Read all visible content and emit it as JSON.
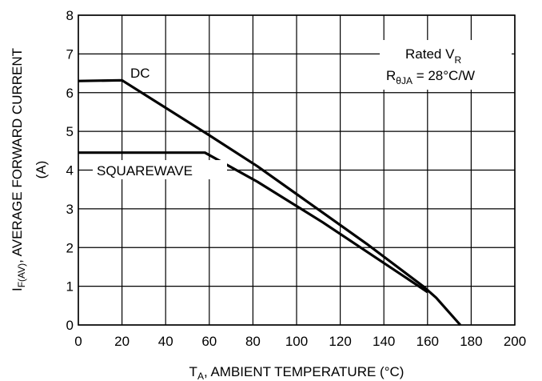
{
  "chart_data": {
    "type": "line",
    "xlabel": {
      "main": "T",
      "sub": "A",
      "rest": ", AMBIENT TEMPERATURE (°C)"
    },
    "ylabel": {
      "main": "I",
      "sub": "F(AV)",
      "rest": ", AVERAGE FORWARD CURRENT",
      "line2": "(A)"
    },
    "xlim": [
      0,
      200
    ],
    "ylim": [
      0,
      8
    ],
    "xticks": [
      "0",
      "20",
      "40",
      "60",
      "80",
      "100",
      "120",
      "140",
      "160",
      "180",
      "200"
    ],
    "yticks": [
      "0",
      "1",
      "2",
      "3",
      "4",
      "5",
      "6",
      "7",
      "8"
    ],
    "grid": true,
    "series": [
      {
        "name": "DC",
        "x": [
          0,
          20,
          60,
          82,
          112,
          132,
          158,
          164,
          175
        ],
        "y": [
          6.3,
          6.32,
          4.9,
          4.1,
          2.9,
          2.1,
          1.0,
          0.7,
          0
        ]
      },
      {
        "name": "SQUAREWAVE",
        "x": [
          0,
          58,
          82,
          112,
          160
        ],
        "y": [
          4.45,
          4.45,
          3.7,
          2.65,
          0.85
        ]
      }
    ],
    "annotation": {
      "line1_main": "Rated V",
      "line1_sub": "R",
      "line2_main": "R",
      "line2_sub": "θJA",
      "line2_rest": " = 28°C/W"
    }
  }
}
